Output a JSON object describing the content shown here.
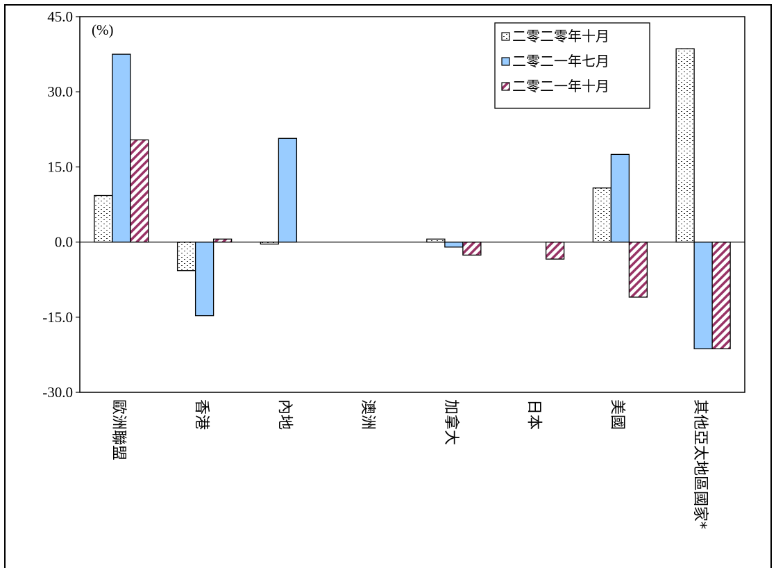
{
  "chart_data": {
    "type": "bar",
    "unit_label": "(%)",
    "categories": [
      "歐洲聯盟",
      "香港",
      "內地",
      "澳洲",
      "加拿大",
      "日本",
      "美國",
      "其他亞太地區國家*"
    ],
    "series": [
      {
        "name": "二零二零年十月",
        "pattern": "dots",
        "values": [
          9.3,
          -5.7,
          -0.4,
          0.0,
          0.6,
          0.0,
          10.8,
          38.6
        ]
      },
      {
        "name": "二零二一年七月",
        "pattern": "solid",
        "values": [
          37.5,
          -14.7,
          20.7,
          0.0,
          -1.0,
          0.0,
          17.5,
          -21.3
        ]
      },
      {
        "name": "二零二一年十月",
        "pattern": "hatch",
        "values": [
          20.4,
          0.6,
          0.0,
          0.0,
          -2.6,
          -3.4,
          -11.0,
          -21.3
        ]
      }
    ],
    "ylim": [
      -30,
      45
    ],
    "yticks": [
      "-30.0",
      "-15.0",
      "0.0",
      "15.0",
      "30.0",
      "45.0"
    ],
    "legend_position": "top-right",
    "colors": {
      "solid_fill": "#99ccff",
      "hatch_color": "#993366",
      "dots_color": "#333333"
    }
  }
}
